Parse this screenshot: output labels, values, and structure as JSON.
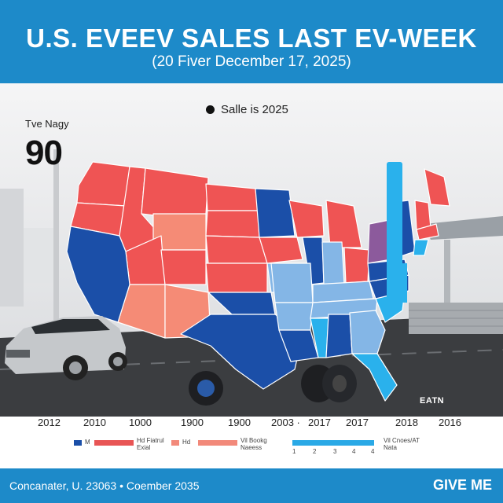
{
  "header": {
    "title": "U.S. EVEEV SALES LAST EV-WEEK",
    "subtitle": "(20 Fiver December 17, 2025)"
  },
  "legend_top": {
    "label": "Salle is 2025"
  },
  "kpi": {
    "label": "Tve Nagy",
    "value": "90"
  },
  "brand": "EATN",
  "years": [
    "2012",
    "2010",
    "1000",
    "1900",
    "1900",
    "2003 ·",
    "2017",
    "2017",
    "2018",
    "2016"
  ],
  "legend_row": [
    {
      "label": "M",
      "text": "Hd Fiatrul Exial",
      "color": "#e85555"
    },
    {
      "label": "Hd",
      "text": "Vil Bookg Naeess",
      "color": "#f2897a"
    },
    {
      "label": "ticks",
      "text": "Vil Cnoes/AT Nata",
      "color": "#2aa9e6",
      "ticks": [
        "1",
        "2",
        "3",
        "4",
        "4"
      ]
    }
  ],
  "footer": {
    "note": "Concanater, U. 23063 • Coember 2035",
    "cta": "GIVE ME"
  },
  "colors": {
    "banner": "#1d8ac9",
    "red_state": "#ef5454",
    "light_red_state": "#f58b76",
    "dark_blue_state": "#1b4fa8",
    "mid_blue_state": "#84b6e6",
    "sky_blue_state": "#2ab1ec",
    "purple_state": "#8c5a9c"
  }
}
